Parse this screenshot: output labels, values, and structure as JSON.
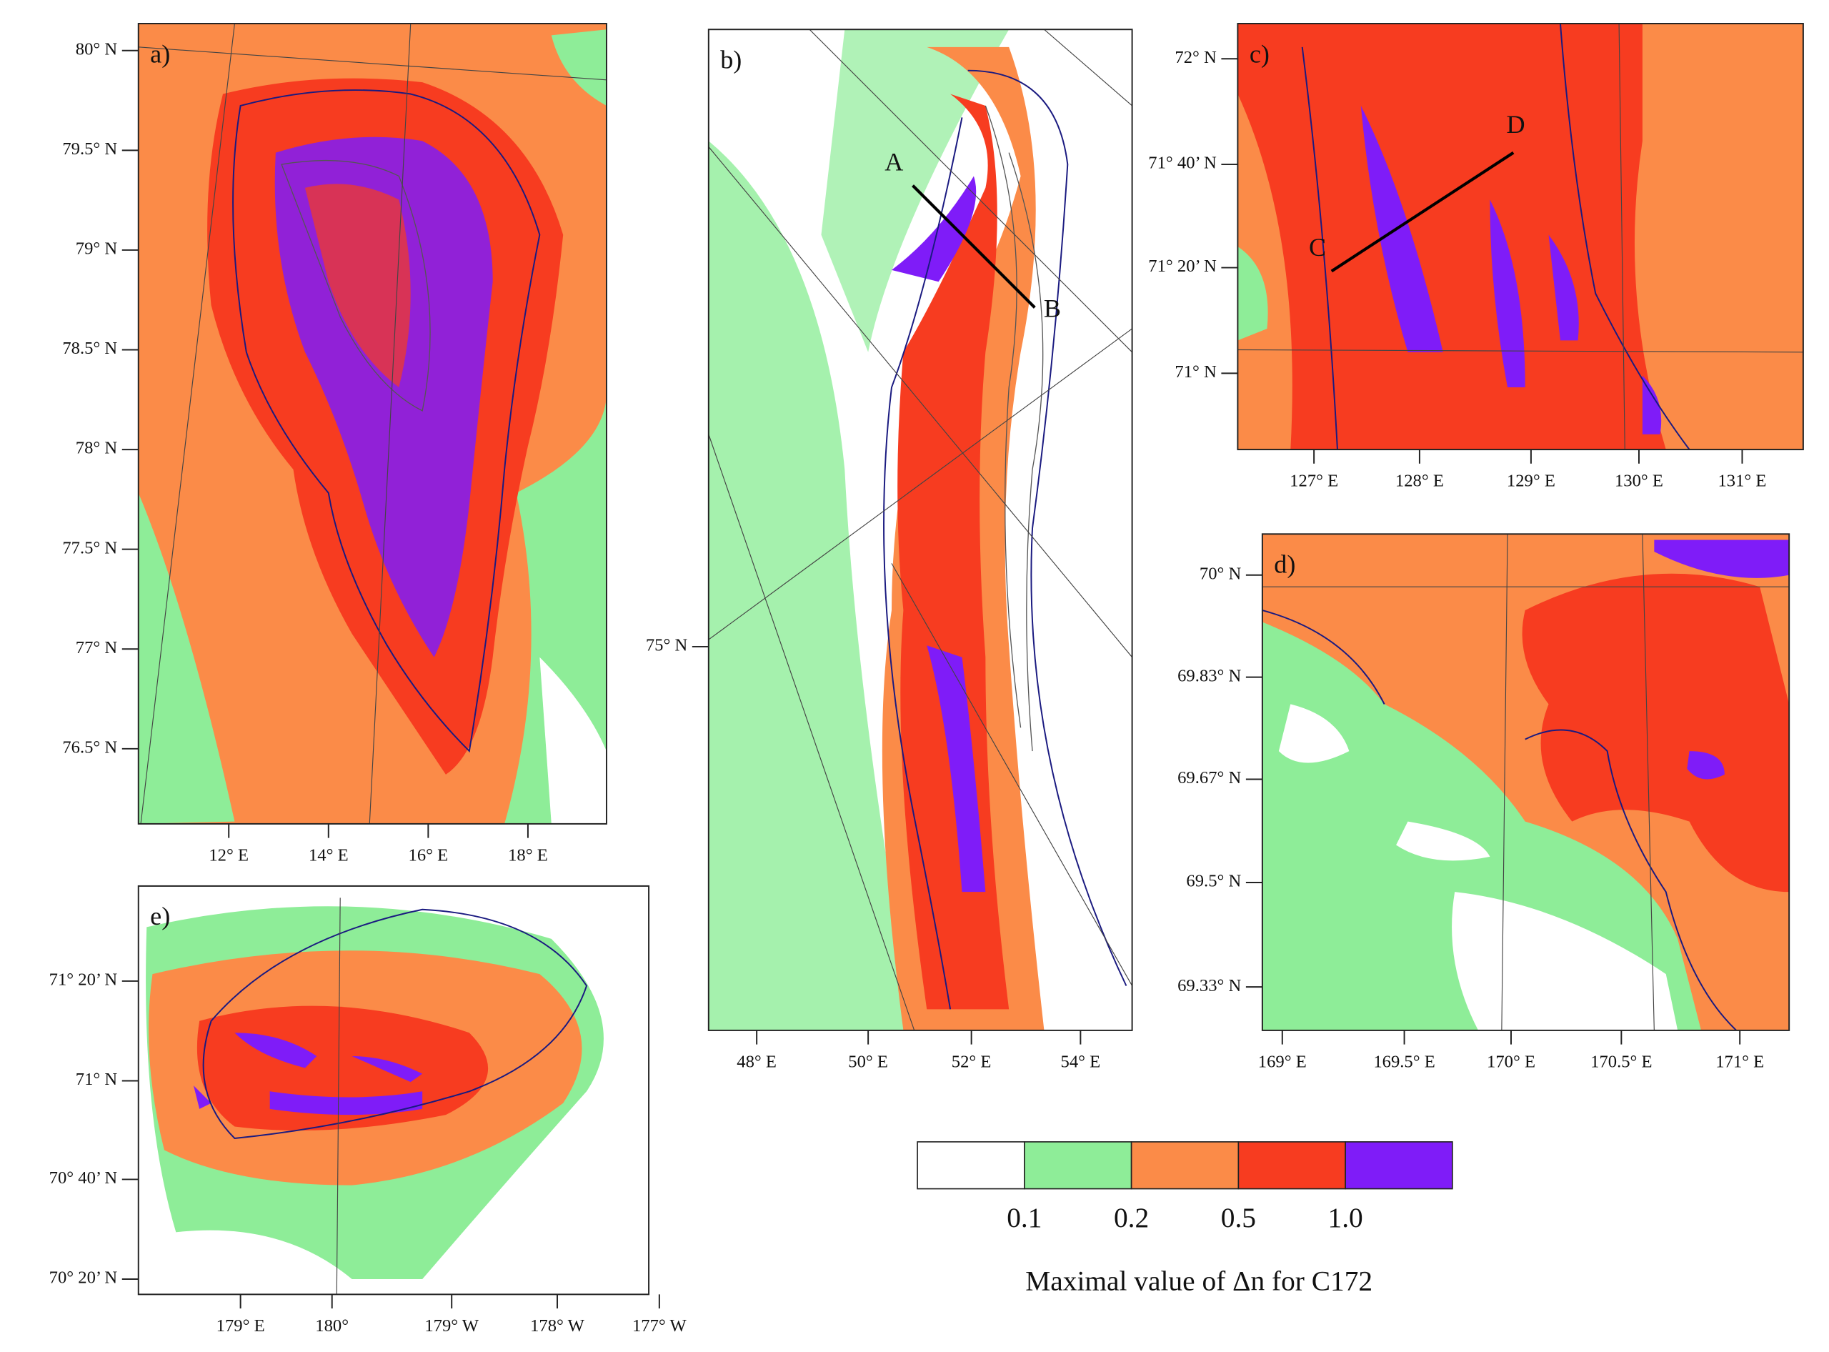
{
  "panels": [
    {
      "letter": "a)",
      "lat_labels": [
        "80° N",
        "79.5° N",
        "79° N",
        "78.5° N",
        "78° N",
        "77.5° N",
        "77° N",
        "76.5° N"
      ],
      "lon_labels": [
        "12° E",
        "14° E",
        "16° E",
        "18° E"
      ]
    },
    {
      "letter": "b)",
      "lat_labels": [
        "75° N"
      ],
      "lon_labels": [
        "48° E",
        "50° E",
        "52° E",
        "54° E"
      ],
      "points": [
        "A",
        "B"
      ]
    },
    {
      "letter": "c)",
      "lat_labels": [
        "72° N",
        "71° 40’ N",
        "71° 20’ N",
        "71° N"
      ],
      "lon_labels": [
        "127° E",
        "128° E",
        "129° E",
        "130° E",
        "131° E"
      ],
      "points": [
        "C",
        "D"
      ]
    },
    {
      "letter": "d)",
      "lat_labels": [
        "70° N",
        "69.83° N",
        "69.67° N",
        "69.5° N",
        "69.33° N"
      ],
      "lon_labels": [
        "169° E",
        "169.5° E",
        "170° E",
        "170.5° E",
        "171° E"
      ]
    },
    {
      "letter": "e)",
      "lat_labels": [
        "71° 20’ N",
        "71° N",
        "70° 40’ N",
        "70° 20’ N"
      ],
      "lon_labels": [
        "179° E",
        "180°",
        "179° W",
        "178° W",
        "177° W"
      ]
    }
  ],
  "legend": {
    "colors": [
      "#ffffff",
      "#8eed98",
      "#fb8b48",
      "#f73c20",
      "#7f1cf8"
    ],
    "labels": [
      "0.1",
      "0.2",
      "0.5",
      "1.0"
    ],
    "title": "Maximal value of Δn for C172"
  }
}
